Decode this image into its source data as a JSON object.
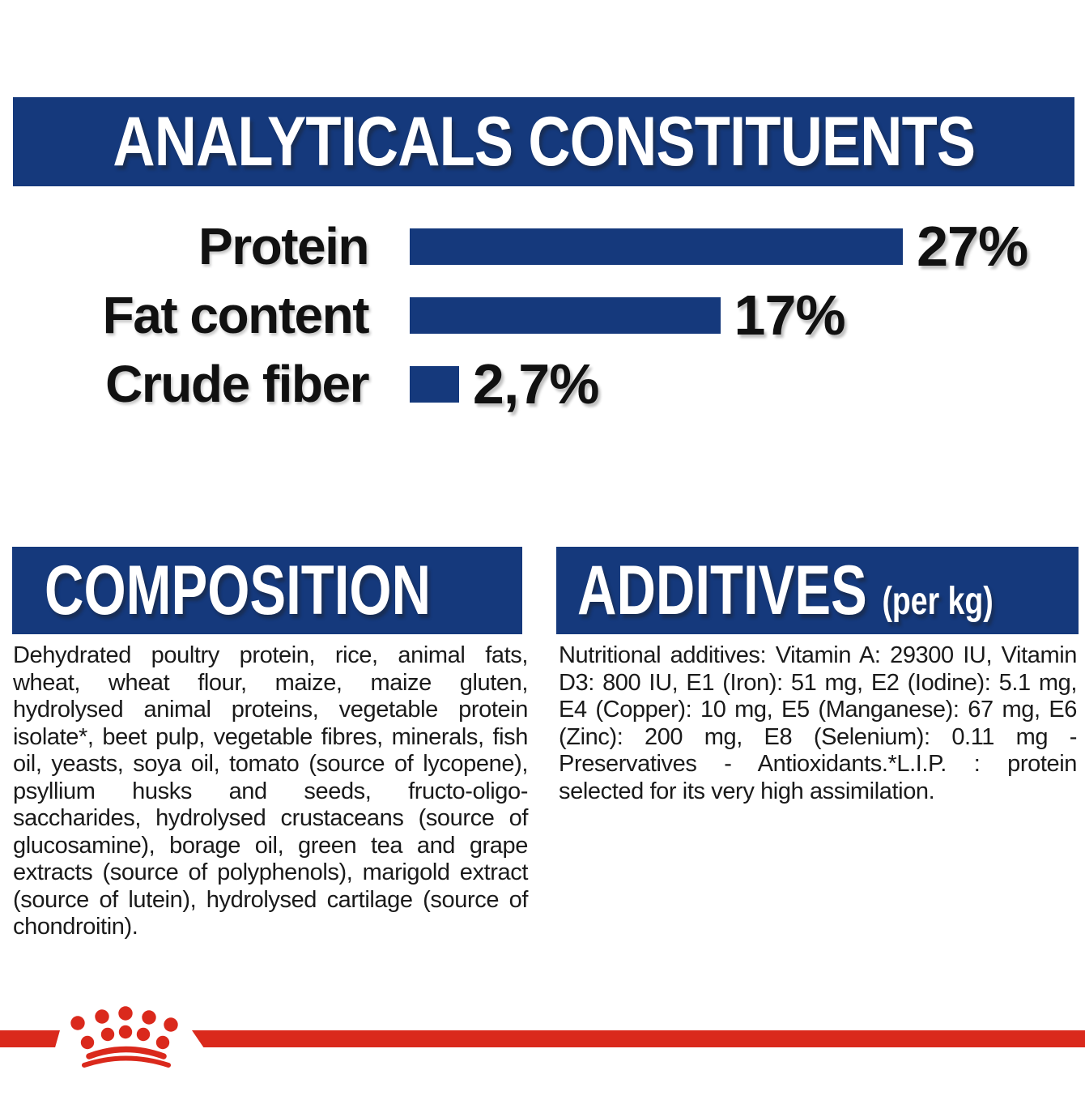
{
  "colors": {
    "navy": "#15397c",
    "red": "#da291c",
    "text_black": "#1a1a1a",
    "white": "#ffffff"
  },
  "analyticals": {
    "title": "ANALYTICALS CONSTITUENTS",
    "rows": [
      {
        "label": "Protein",
        "value": "27%",
        "percent": 27
      },
      {
        "label": "Fat content",
        "value": "17%",
        "percent": 17
      },
      {
        "label": "Crude fiber",
        "value": "2,7%",
        "percent": 2.7
      }
    ]
  },
  "chart_data": {
    "type": "bar",
    "orientation": "horizontal",
    "title": "ANALYTICALS CONSTITUENTS",
    "categories": [
      "Protein",
      "Fat content",
      "Crude fiber"
    ],
    "values": [
      27,
      17,
      2.7
    ],
    "value_labels": [
      "27%",
      "17%",
      "2,7%"
    ],
    "xlabel": "",
    "ylabel": "",
    "xlim": [
      0,
      30
    ],
    "bar_color": "#15397c",
    "grid": false,
    "legend": false
  },
  "composition": {
    "title": "COMPOSITION",
    "body": "Dehydrated poultry protein, rice, animal fats, wheat, wheat flour, maize, maize gluten, hydrolysed animal proteins, vegetable protein isolate*, beet pulp, vegetable fibres, minerals, fish oil, yeasts, soya oil, tomato (source of lycopene), psyllium husks and seeds, fructo-oligo-saccharides, hydrolysed crustaceans (source of glucosamine), borage oil, green tea and grape extracts (source of polyphenols), marigold extract (source of lutein), hydrolysed cartilage (source of chondroitin)."
  },
  "additives": {
    "title": "ADDITIVES",
    "unit": "(per kg)",
    "body": "Nutritional additives: Vitamin A: 29300 IU, Vitamin D3: 800 IU, E1 (Iron): 51 mg, E2 (Iodine): 5.1 mg, E4 (Copper): 10 mg, E5 (Manganese): 67 mg, E6 (Zinc): 200 mg, E8 (Selenium): 0.11 mg - Preservatives - Antioxidants.*L.I.P. : protein selected for its very high assimilation."
  },
  "footer": {
    "logo": "royal-canin-crown"
  }
}
